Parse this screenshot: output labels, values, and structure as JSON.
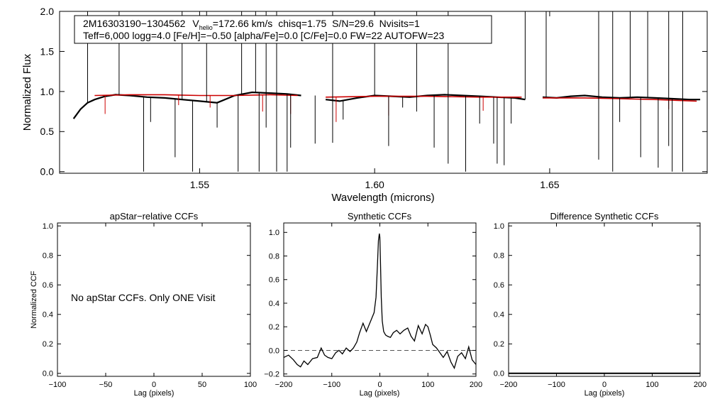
{
  "chart_data": [
    {
      "type": "line",
      "id": "spectrum",
      "xlabel": "Wavelength (microns)",
      "ylabel": "Normalized Flux",
      "xlim": [
        1.51,
        1.695
      ],
      "ylim": [
        -0.02,
        2.0
      ],
      "xticks": [
        1.55,
        1.6,
        1.65
      ],
      "xtick_labels": [
        "1.55",
        "1.60",
        "1.65"
      ],
      "yticks": [
        0.0,
        0.5,
        1.0,
        1.5,
        2.0
      ],
      "ytick_labels": [
        "0.0",
        "0.5",
        "1.0",
        "1.5",
        "2.0"
      ],
      "annotation": {
        "star_id": "2M16303190−1304562",
        "v_prefix": "V",
        "v_sub": "helio",
        "v_value": "=172.66 km/s",
        "stats": "chisq=1.75  S/N=29.6  Nvisits=1",
        "params": "Teff=6,000 logg=4.0 [Fe/H]=−0.50 [alpha/Fe]=0.0 [C/Fe]=0.0 FW=22 AUTOFW=23"
      },
      "series": [
        {
          "name": "observed",
          "color": "#000000",
          "segments": [
            {
              "x": [
                1.514,
                1.516,
                1.518,
                1.52,
                1.523,
                1.526,
                1.53,
                1.535,
                1.54,
                1.545,
                1.55,
                1.555,
                1.56,
                1.565,
                1.57,
                1.575,
                1.579
              ],
              "y": [
                0.66,
                0.78,
                0.86,
                0.9,
                0.94,
                0.96,
                0.95,
                0.93,
                0.92,
                0.9,
                0.88,
                0.86,
                0.95,
                0.99,
                0.98,
                0.97,
                0.95
              ]
            },
            {
              "x": [
                1.586,
                1.59,
                1.595,
                1.6,
                1.605,
                1.61,
                1.615,
                1.62,
                1.625,
                1.63,
                1.635,
                1.64,
                1.643
              ],
              "y": [
                0.9,
                0.88,
                0.92,
                0.95,
                0.94,
                0.93,
                0.95,
                0.96,
                0.95,
                0.94,
                0.93,
                0.92,
                0.9
              ]
            },
            {
              "x": [
                1.648,
                1.652,
                1.656,
                1.66,
                1.665,
                1.67,
                1.675,
                1.68,
                1.685,
                1.69,
                1.693
              ],
              "y": [
                0.93,
                0.92,
                0.94,
                0.95,
                0.93,
                0.92,
                0.93,
                0.92,
                0.91,
                0.9,
                0.9
              ]
            }
          ],
          "spikes_up": [
            1.518,
            1.527,
            1.545,
            1.552,
            1.562,
            1.566,
            1.569,
            1.572,
            1.588,
            1.6,
            1.612,
            1.621,
            1.643,
            1.649,
            1.664,
            1.668,
            1.673,
            1.678,
            1.684,
            1.688
          ],
          "dips": [
            {
              "x": 1.534,
              "y": 0.0
            },
            {
              "x": 1.536,
              "y": 0.62
            },
            {
              "x": 1.543,
              "y": 0.18
            },
            {
              "x": 1.548,
              "y": 0.0
            },
            {
              "x": 1.555,
              "y": 0.55
            },
            {
              "x": 1.561,
              "y": 0.0
            },
            {
              "x": 1.567,
              "y": 0.0
            },
            {
              "x": 1.569,
              "y": 0.55
            },
            {
              "x": 1.572,
              "y": 0.0
            },
            {
              "x": 1.575,
              "y": 0.0
            },
            {
              "x": 1.576,
              "y": 0.3
            },
            {
              "x": 1.583,
              "y": 0.35
            },
            {
              "x": 1.588,
              "y": 0.36
            },
            {
              "x": 1.591,
              "y": 0.65
            },
            {
              "x": 1.604,
              "y": 0.32
            },
            {
              "x": 1.608,
              "y": 0.8
            },
            {
              "x": 1.612,
              "y": 0.75
            },
            {
              "x": 1.617,
              "y": 0.3
            },
            {
              "x": 1.621,
              "y": 0.1
            },
            {
              "x": 1.626,
              "y": 0.0
            },
            {
              "x": 1.63,
              "y": 0.6
            },
            {
              "x": 1.634,
              "y": 0.35
            },
            {
              "x": 1.635,
              "y": 0.1
            },
            {
              "x": 1.637,
              "y": 0.08
            },
            {
              "x": 1.639,
              "y": 0.6
            },
            {
              "x": 1.664,
              "y": 0.15
            },
            {
              "x": 1.668,
              "y": 0.0
            },
            {
              "x": 1.67,
              "y": 0.62
            },
            {
              "x": 1.676,
              "y": 0.18
            },
            {
              "x": 1.681,
              "y": 0.05
            },
            {
              "x": 1.684,
              "y": 0.32
            },
            {
              "x": 1.685,
              "y": 0.0
            },
            {
              "x": 1.688,
              "y": 0.0
            }
          ]
        },
        {
          "name": "synthetic",
          "color": "#cc0000",
          "segments": [
            {
              "x": [
                1.52,
                1.53,
                1.54,
                1.55,
                1.56,
                1.57,
                1.578
              ],
              "y": [
                0.95,
                0.96,
                0.96,
                0.95,
                0.95,
                0.96,
                0.95
              ]
            },
            {
              "x": [
                1.586,
                1.6,
                1.615,
                1.63,
                1.642
              ],
              "y": [
                0.93,
                0.94,
                0.94,
                0.93,
                0.93
              ]
            },
            {
              "x": [
                1.648,
                1.66,
                1.67,
                1.68,
                1.692
              ],
              "y": [
                0.92,
                0.92,
                0.91,
                0.9,
                0.88
              ]
            }
          ],
          "dips": [
            {
              "x": 1.523,
              "y": 0.72
            },
            {
              "x": 1.544,
              "y": 0.83
            },
            {
              "x": 1.553,
              "y": 0.8
            },
            {
              "x": 1.568,
              "y": 0.75
            },
            {
              "x": 1.576,
              "y": 0.72
            },
            {
              "x": 1.589,
              "y": 0.62
            },
            {
              "x": 1.604,
              "y": 0.7
            },
            {
              "x": 1.631,
              "y": 0.76
            },
            {
              "x": 1.664,
              "y": 0.75
            },
            {
              "x": 1.684,
              "y": 0.78
            }
          ]
        }
      ]
    },
    {
      "type": "line",
      "id": "apstar-ccf",
      "title": "apStar−relative CCFs",
      "xlabel": "Lag (pixels)",
      "ylabel": "Normalized CCF",
      "xlim": [
        -100,
        100
      ],
      "ylim": [
        -0.02,
        1.02
      ],
      "xticks": [
        -100,
        -50,
        0,
        50,
        100
      ],
      "xtick_labels": [
        "−100",
        "−50",
        "0",
        "50",
        "100"
      ],
      "yticks": [
        0.0,
        0.2,
        0.4,
        0.6,
        0.8,
        1.0
      ],
      "ytick_labels": [
        "0.0",
        "0.2",
        "0.4",
        "0.6",
        "0.8",
        "1.0"
      ],
      "annotation": "No apStar CCFs.  Only ONE Visit",
      "series": []
    },
    {
      "type": "line",
      "id": "synthetic-ccf",
      "title": "Synthetic CCFs",
      "xlabel": "Lag (pixels)",
      "xlim": [
        -200,
        200
      ],
      "ylim": [
        -0.22,
        1.08
      ],
      "xticks": [
        -200,
        -100,
        0,
        100,
        200
      ],
      "xtick_labels": [
        "−200",
        "−100",
        "0",
        "100",
        "200"
      ],
      "yticks": [
        -0.2,
        0.0,
        0.2,
        0.4,
        0.6,
        0.8,
        1.0
      ],
      "ytick_labels": [
        "−0.2",
        "0.0",
        "0.2",
        "0.4",
        "0.6",
        "0.8",
        "1.0"
      ],
      "reference_line": 0.0,
      "series": [
        {
          "name": "ccf",
          "x": [
            -200,
            -190,
            -180,
            -172,
            -165,
            -158,
            -150,
            -140,
            -130,
            -122,
            -115,
            -108,
            -100,
            -92,
            -85,
            -78,
            -70,
            -62,
            -55,
            -48,
            -42,
            -35,
            -28,
            -22,
            -16,
            -12,
            -8,
            -5,
            -3,
            -1,
            0,
            1,
            3,
            5,
            8,
            12,
            16,
            22,
            28,
            35,
            42,
            50,
            58,
            65,
            72,
            80,
            88,
            95,
            100,
            105,
            110,
            118,
            125,
            132,
            140,
            148,
            155,
            162,
            170,
            178,
            185,
            192,
            200
          ],
          "y": [
            -0.06,
            -0.04,
            -0.08,
            -0.12,
            -0.14,
            -0.09,
            -0.12,
            -0.07,
            -0.06,
            0.02,
            -0.04,
            -0.06,
            -0.07,
            -0.02,
            0.0,
            -0.03,
            0.02,
            -0.01,
            0.02,
            0.07,
            0.15,
            0.23,
            0.16,
            0.22,
            0.28,
            0.32,
            0.45,
            0.72,
            0.93,
            0.99,
            0.96,
            0.8,
            0.45,
            0.25,
            0.16,
            0.13,
            0.12,
            0.11,
            0.15,
            0.17,
            0.14,
            0.17,
            0.19,
            0.12,
            0.08,
            0.21,
            0.14,
            0.22,
            0.2,
            0.13,
            0.05,
            0.02,
            -0.02,
            -0.06,
            -0.01,
            -0.1,
            -0.15,
            -0.05,
            -0.02,
            -0.07,
            0.03,
            -0.08,
            -0.12
          ]
        }
      ]
    },
    {
      "type": "line",
      "id": "difference-ccf",
      "title": "Difference Synthetic CCFs",
      "xlabel": "Lag (pixels)",
      "xlim": [
        -200,
        200
      ],
      "ylim": [
        -0.02,
        1.02
      ],
      "xticks": [
        -200,
        -100,
        0,
        100,
        200
      ],
      "xtick_labels": [
        "−200",
        "−100",
        "0",
        "100",
        "200"
      ],
      "yticks": [
        0.0,
        0.2,
        0.4,
        0.6,
        0.8,
        1.0
      ],
      "ytick_labels": [
        "0.0",
        "0.2",
        "0.4",
        "0.6",
        "0.8",
        "1.0"
      ],
      "series": [
        {
          "name": "difference",
          "x": [
            -200,
            200
          ],
          "y": [
            0.0,
            0.0
          ]
        }
      ]
    }
  ]
}
